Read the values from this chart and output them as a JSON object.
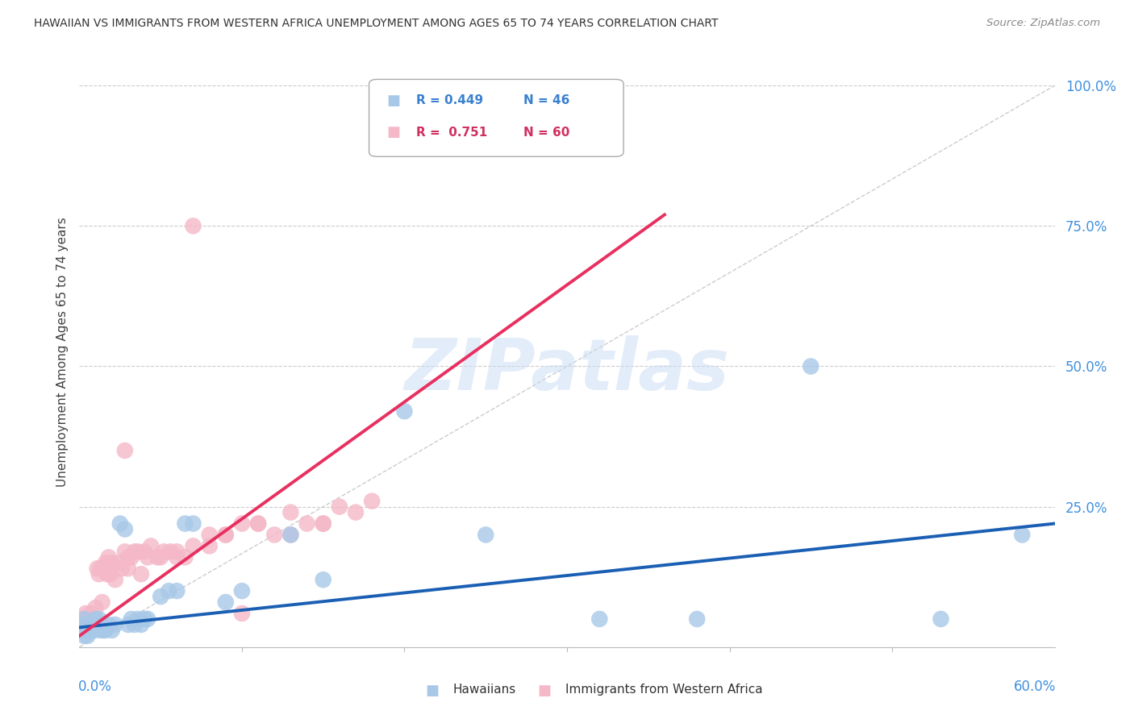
{
  "title": "HAWAIIAN VS IMMIGRANTS FROM WESTERN AFRICA UNEMPLOYMENT AMONG AGES 65 TO 74 YEARS CORRELATION CHART",
  "source": "Source: ZipAtlas.com",
  "ylabel": "Unemployment Among Ages 65 to 74 years",
  "yaxis_labels": [
    "100.0%",
    "75.0%",
    "50.0%",
    "25.0%"
  ],
  "yaxis_values": [
    1.0,
    0.75,
    0.5,
    0.25
  ],
  "xmin": 0.0,
  "xmax": 0.6,
  "ymin": 0.0,
  "ymax": 1.05,
  "watermark": "ZIPatlas",
  "hawaiian_color": "#a8c8e8",
  "hawaiian_line_color": "#1a5fb4",
  "immigrant_color": "#f4b8c8",
  "immigrant_line_color": "#e83060",
  "diag_line_color": "#cccccc",
  "grid_color": "#cccccc",
  "title_color": "#333333",
  "source_color": "#888888",
  "yaxis_tick_color": "#4090e0",
  "xaxis_tick_color": "#4090e0",
  "hawaiians_x": [
    0.001,
    0.002,
    0.003,
    0.003,
    0.004,
    0.005,
    0.005,
    0.006,
    0.007,
    0.008,
    0.009,
    0.01,
    0.011,
    0.012,
    0.013,
    0.014,
    0.015,
    0.016,
    0.018,
    0.02,
    0.022,
    0.025,
    0.028,
    0.03,
    0.032,
    0.034,
    0.036,
    0.038,
    0.04,
    0.042,
    0.05,
    0.055,
    0.06,
    0.065,
    0.07,
    0.09,
    0.1,
    0.13,
    0.15,
    0.2,
    0.25,
    0.32,
    0.38,
    0.45,
    0.53,
    0.58
  ],
  "hawaiians_y": [
    0.03,
    0.04,
    0.02,
    0.05,
    0.03,
    0.04,
    0.02,
    0.04,
    0.03,
    0.04,
    0.03,
    0.05,
    0.04,
    0.05,
    0.03,
    0.04,
    0.03,
    0.03,
    0.04,
    0.03,
    0.04,
    0.22,
    0.21,
    0.04,
    0.05,
    0.04,
    0.05,
    0.04,
    0.05,
    0.05,
    0.09,
    0.1,
    0.1,
    0.22,
    0.22,
    0.08,
    0.1,
    0.2,
    0.12,
    0.42,
    0.2,
    0.05,
    0.05,
    0.5,
    0.05,
    0.2
  ],
  "immigrants_x": [
    0.001,
    0.002,
    0.003,
    0.004,
    0.005,
    0.006,
    0.007,
    0.008,
    0.009,
    0.01,
    0.011,
    0.012,
    0.013,
    0.014,
    0.015,
    0.016,
    0.017,
    0.018,
    0.019,
    0.02,
    0.022,
    0.024,
    0.026,
    0.028,
    0.03,
    0.032,
    0.034,
    0.036,
    0.038,
    0.04,
    0.042,
    0.044,
    0.048,
    0.052,
    0.056,
    0.06,
    0.065,
    0.07,
    0.08,
    0.09,
    0.1,
    0.11,
    0.12,
    0.13,
    0.14,
    0.15,
    0.16,
    0.17,
    0.18,
    0.1,
    0.028,
    0.05,
    0.06,
    0.07,
    0.08,
    0.09,
    0.11,
    0.13,
    0.15,
    0.03
  ],
  "immigrants_y": [
    0.04,
    0.05,
    0.04,
    0.06,
    0.04,
    0.05,
    0.06,
    0.05,
    0.05,
    0.07,
    0.14,
    0.13,
    0.14,
    0.08,
    0.14,
    0.15,
    0.13,
    0.16,
    0.13,
    0.15,
    0.12,
    0.15,
    0.14,
    0.35,
    0.14,
    0.16,
    0.17,
    0.17,
    0.13,
    0.17,
    0.16,
    0.18,
    0.16,
    0.17,
    0.17,
    0.16,
    0.16,
    0.18,
    0.18,
    0.2,
    0.22,
    0.22,
    0.2,
    0.24,
    0.22,
    0.22,
    0.25,
    0.24,
    0.26,
    0.06,
    0.17,
    0.16,
    0.17,
    0.75,
    0.2,
    0.2,
    0.22,
    0.2,
    0.22,
    0.16
  ],
  "hawaiian_trend_x": [
    0.0,
    0.6
  ],
  "hawaiian_trend_y": [
    0.035,
    0.22
  ],
  "immigrant_trend_x": [
    0.0,
    0.36
  ],
  "immigrant_trend_y": [
    0.02,
    0.77
  ]
}
